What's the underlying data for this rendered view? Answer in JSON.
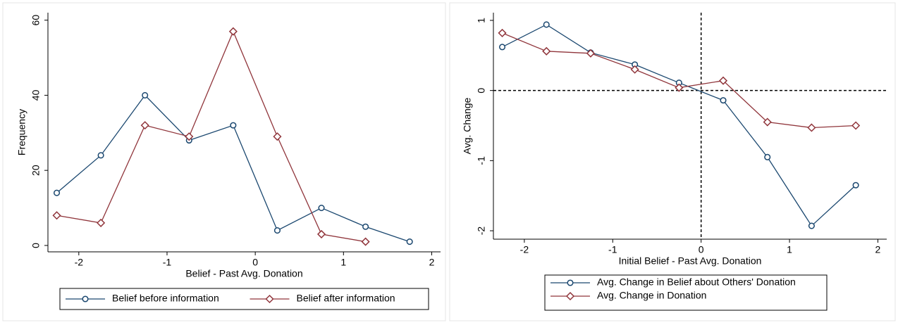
{
  "chart_data": [
    {
      "type": "line",
      "xlabel": "Belief - Past Avg. Donation",
      "ylabel": "Frequency",
      "xlim": [
        -2.35,
        2.1
      ],
      "ylim": [
        -1.7,
        62
      ],
      "xticks": [
        -2,
        -1,
        0,
        1,
        2
      ],
      "yticks": [
        0,
        20,
        40,
        60
      ],
      "legend_columns": 2,
      "series": [
        {
          "name": "Belief before information",
          "color": "#1a476f",
          "marker": "circle",
          "x": [
            -2.25,
            -1.75,
            -1.25,
            -0.75,
            -0.25,
            0.25,
            0.75,
            1.25,
            1.75
          ],
          "values": [
            14,
            24,
            40,
            28,
            32,
            4,
            10,
            5,
            1
          ]
        },
        {
          "name": "Belief after information",
          "color": "#90353b",
          "marker": "diamond",
          "x": [
            -2.25,
            -1.75,
            -1.25,
            -0.75,
            -0.25,
            0.25,
            0.75,
            1.25
          ],
          "values": [
            8,
            6,
            32,
            29,
            57,
            29,
            3,
            1
          ]
        }
      ]
    },
    {
      "type": "line",
      "xlabel": "Initial Belief - Past Avg. Donation",
      "ylabel": "Avg. Change",
      "xlim": [
        -2.35,
        2.1
      ],
      "ylim": [
        -2.12,
        1.11
      ],
      "xticks": [
        -2,
        -1,
        0,
        1,
        2
      ],
      "yticks": [
        -2,
        -1,
        0,
        1
      ],
      "xline": 0,
      "yline": 0,
      "legend_columns": 1,
      "series": [
        {
          "name": "Avg. Change in Belief about Others' Donation",
          "color": "#1a476f",
          "marker": "circle",
          "x": [
            -2.25,
            -1.75,
            -1.25,
            -0.75,
            -0.25,
            0.25,
            0.75,
            1.25,
            1.75
          ],
          "values": [
            0.62,
            0.94,
            0.54,
            0.37,
            0.11,
            -0.14,
            -0.95,
            -1.93,
            -1.35
          ]
        },
        {
          "name": "Avg. Change in Donation",
          "color": "#90353b",
          "marker": "diamond",
          "x": [
            -2.25,
            -1.75,
            -1.25,
            -0.75,
            -0.25,
            0.25,
            0.75,
            1.25,
            1.75
          ],
          "values": [
            0.82,
            0.56,
            0.53,
            0.3,
            0.04,
            0.14,
            -0.45,
            -0.53,
            -0.5
          ]
        }
      ]
    }
  ]
}
